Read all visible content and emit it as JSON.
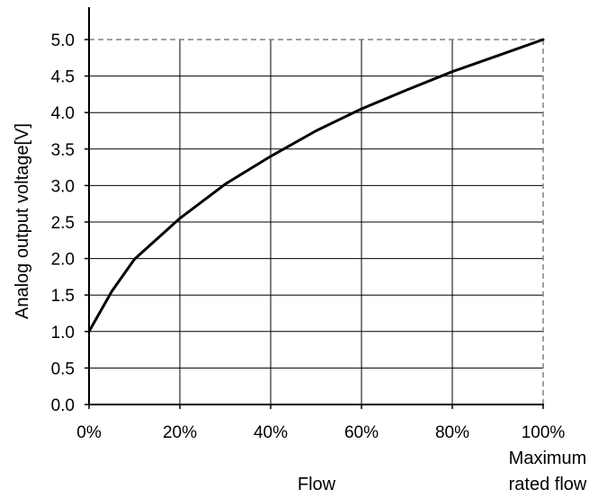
{
  "chart_data": {
    "type": "line",
    "title": "",
    "xlabel": "Flow",
    "ylabel": "Analog output voltage[V]",
    "x_end_note": [
      "Maximum",
      "rated flow"
    ],
    "xlim": [
      0,
      100
    ],
    "ylim": [
      0,
      5
    ],
    "x_ticks": [
      0,
      20,
      40,
      60,
      80,
      100
    ],
    "x_tick_labels": [
      "0%",
      "20%",
      "40%",
      "60%",
      "80%",
      "100%"
    ],
    "y_ticks": [
      0,
      0.5,
      1,
      1.5,
      2,
      2.5,
      3,
      3.5,
      4,
      4.5,
      5
    ],
    "y_tick_labels": [
      "0.0",
      "0.5",
      "1.0",
      "1.5",
      "2.0",
      "2.5",
      "3.0",
      "3.5",
      "4.0",
      "4.5",
      "5.0"
    ],
    "grid": true,
    "series": [
      {
        "x": [
          0,
          5,
          10,
          20,
          30,
          40,
          50,
          60,
          70,
          80,
          90,
          100
        ],
        "y": [
          1.0,
          1.55,
          1.99,
          2.55,
          3.02,
          3.4,
          3.75,
          4.05,
          4.31,
          4.56,
          4.78,
          5.0
        ],
        "color": "#000000"
      }
    ]
  }
}
